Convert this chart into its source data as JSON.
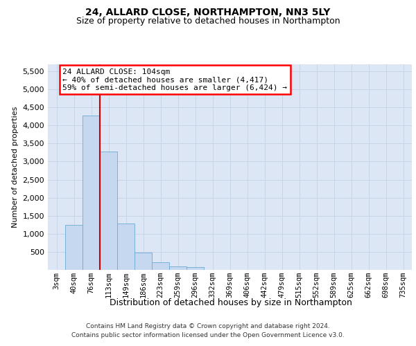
{
  "title": "24, ALLARD CLOSE, NORTHAMPTON, NN3 5LY",
  "subtitle": "Size of property relative to detached houses in Northampton",
  "xlabel": "Distribution of detached houses by size in Northampton",
  "ylabel": "Number of detached properties",
  "footer_line1": "Contains HM Land Registry data © Crown copyright and database right 2024.",
  "footer_line2": "Contains public sector information licensed under the Open Government Licence v3.0.",
  "annotation_line1": "24 ALLARD CLOSE: 104sqm",
  "annotation_line2": "← 40% of detached houses are smaller (4,417)",
  "annotation_line3": "59% of semi-detached houses are larger (6,424) →",
  "bar_color": "#c5d8f0",
  "bar_edge_color": "#6aaad4",
  "vline_color": "#cc0000",
  "vline_index": 2.5,
  "categories": [
    "3sqm",
    "40sqm",
    "76sqm",
    "113sqm",
    "149sqm",
    "186sqm",
    "223sqm",
    "259sqm",
    "296sqm",
    "332sqm",
    "369sqm",
    "406sqm",
    "442sqm",
    "479sqm",
    "515sqm",
    "552sqm",
    "589sqm",
    "625sqm",
    "662sqm",
    "698sqm",
    "735sqm"
  ],
  "values": [
    0,
    1250,
    4280,
    3270,
    1280,
    470,
    210,
    100,
    70,
    0,
    0,
    0,
    0,
    0,
    0,
    0,
    0,
    0,
    0,
    0,
    0
  ],
  "ylim": [
    0,
    5700
  ],
  "yticks": [
    0,
    500,
    1000,
    1500,
    2000,
    2500,
    3000,
    3500,
    4000,
    4500,
    5000,
    5500
  ],
  "grid_color": "#c8d4e8",
  "bg_color": "#dce6f5",
  "fig_bg_color": "#ffffff",
  "title_fontsize": 10,
  "subtitle_fontsize": 9,
  "ylabel_fontsize": 8,
  "xlabel_fontsize": 9,
  "tick_fontsize": 7.5,
  "footer_fontsize": 6.5,
  "ann_fontsize": 8
}
